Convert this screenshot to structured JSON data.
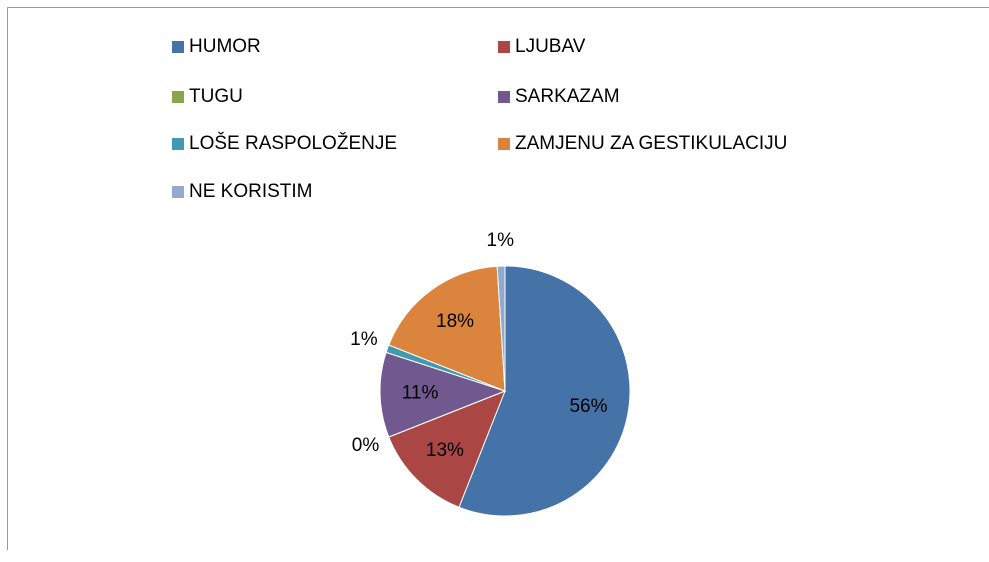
{
  "chart_data": {
    "type": "pie",
    "categories": [
      "HUMOR",
      "LJUBAV",
      "TUGU",
      "SARKAZAM",
      "LOŠE RASPOLOŽENJE",
      "ZAMJENU ZA GESTIKULACIJU",
      "NE KORISTIM"
    ],
    "values": [
      56,
      13,
      0,
      11,
      1,
      18,
      1
    ],
    "value_labels": [
      "56%",
      "13%",
      "0%",
      "11%",
      "1%",
      "18%",
      "1%"
    ],
    "colors": [
      "#4572a7",
      "#aa4643",
      "#89a54e",
      "#71588f",
      "#4198af",
      "#db843d",
      "#93a9cf"
    ]
  }
}
